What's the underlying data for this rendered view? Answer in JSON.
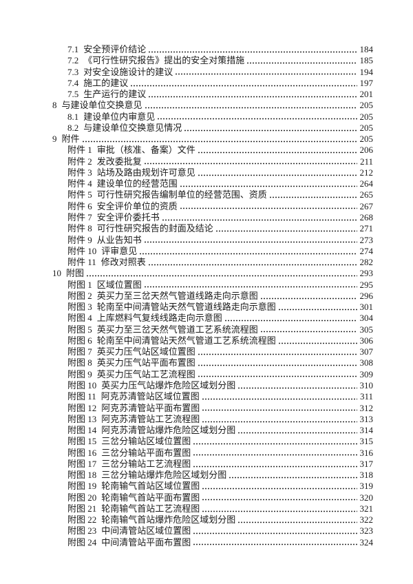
{
  "page": {
    "background_color": "#ffffff",
    "text_color": "#1a1a1a"
  },
  "toc": {
    "entries": [
      {
        "level": 2,
        "label": "7.1",
        "title": "安全预评价结论",
        "page": "184"
      },
      {
        "level": 2,
        "label": "7.2",
        "title": "《可行性研究报告》提出的安全对策措施",
        "page": "185"
      },
      {
        "level": 2,
        "label": "7.3",
        "title": "对安全设施设计的建议",
        "page": "194"
      },
      {
        "level": 2,
        "label": "7.4",
        "title": "施工的建议",
        "page": "197"
      },
      {
        "level": 2,
        "label": "7.5",
        "title": "生产运行的建议",
        "page": "201"
      },
      {
        "level": 1,
        "label": "8",
        "title": "与建设单位交换意见",
        "page": "205"
      },
      {
        "level": 2,
        "label": "8.1",
        "title": "建设单位内审意见",
        "page": "205"
      },
      {
        "level": 2,
        "label": "8.2",
        "title": "与建设单位交换意见情况",
        "page": "205"
      },
      {
        "level": 1,
        "label": "9",
        "title": "附件",
        "page": "205"
      },
      {
        "level": 2,
        "label": "附件 1",
        "title": "审批（核准、备案）文件",
        "page": "206"
      },
      {
        "level": 2,
        "label": "附件 2",
        "title": "发改委批复",
        "page": "211"
      },
      {
        "level": 2,
        "label": "附件 3",
        "title": "站场及路由规划许可意见",
        "page": "212"
      },
      {
        "level": 2,
        "label": "附件 4",
        "title": "建设单位的经营范围",
        "page": "264"
      },
      {
        "level": 2,
        "label": "附件 5",
        "title": "可行性研究报告编制单位的经营范围、资质",
        "page": "265"
      },
      {
        "level": 2,
        "label": "附件 6",
        "title": "安全评价单位的资质",
        "page": "267"
      },
      {
        "level": 2,
        "label": "附件 7",
        "title": "安全评价委托书",
        "page": "268"
      },
      {
        "level": 2,
        "label": "附件 8",
        "title": "可行性研究报告的封面及结论",
        "page": "271"
      },
      {
        "level": 2,
        "label": "附件 9",
        "title": "从业告知书",
        "page": "273"
      },
      {
        "level": 2,
        "label": "附件 10",
        "title": "评审意见",
        "page": "274"
      },
      {
        "level": 2,
        "label": "附件 11",
        "title": "修改对照表",
        "page": "282"
      },
      {
        "level": 1,
        "label": "10",
        "title": "附图",
        "page": "293"
      },
      {
        "level": 2,
        "label": "附图 1",
        "title": "区域位置图",
        "page": "295"
      },
      {
        "level": 2,
        "label": "附图 2",
        "title": "英买力至三岔天然气管道线路走向示意图",
        "page": "296"
      },
      {
        "level": 2,
        "label": "附图 3",
        "title": "轮南至中间清管站天然气管道线路走向示意图",
        "page": "301"
      },
      {
        "level": 2,
        "label": "附图 4",
        "title": "上库燃料气复线线路走向示意图",
        "page": "304"
      },
      {
        "level": 2,
        "label": "附图 5",
        "title": "英买力至三岔天然气管道工艺系统流程图",
        "page": "305"
      },
      {
        "level": 2,
        "label": "附图 6",
        "title": "轮南至中间清管站天然气管道工艺系统流程图",
        "page": "306"
      },
      {
        "level": 2,
        "label": "附图 7",
        "title": "英买力压气站区域位置图",
        "page": "307"
      },
      {
        "level": 2,
        "label": "附图 8",
        "title": "英买力压气站平面布置图",
        "page": "308"
      },
      {
        "level": 2,
        "label": "附图 9",
        "title": "英买力压气站工艺流程图",
        "page": "309"
      },
      {
        "level": 2,
        "label": "附图 10",
        "title": "英买力压气站爆炸危险区域划分图",
        "page": "310"
      },
      {
        "level": 2,
        "label": "附图 11",
        "title": "阿克苏清管站区域位置图",
        "page": "311"
      },
      {
        "level": 2,
        "label": "附图 12",
        "title": "阿克苏清管站平面布置图",
        "page": "312"
      },
      {
        "level": 2,
        "label": "附图 13",
        "title": "阿克苏清管站工艺流程图",
        "page": "313"
      },
      {
        "level": 2,
        "label": "附图 14",
        "title": "阿克苏清管站爆炸危险区域划分图",
        "page": "314"
      },
      {
        "level": 2,
        "label": "附图 15",
        "title": "三岔分输站区域位置图",
        "page": "315"
      },
      {
        "level": 2,
        "label": "附图 16",
        "title": "三岔分输站平面布置图",
        "page": "316"
      },
      {
        "level": 2,
        "label": "附图 17",
        "title": "三岔分输站工艺流程图",
        "page": "317"
      },
      {
        "level": 2,
        "label": "附图 18",
        "title": "三岔分输站爆炸危险区域划分图",
        "page": "318"
      },
      {
        "level": 2,
        "label": "附图 19",
        "title": "轮南输气首站区域位置图",
        "page": "319"
      },
      {
        "level": 2,
        "label": "附图 20",
        "title": "轮南输气首站平面布置图",
        "page": "320"
      },
      {
        "level": 2,
        "label": "附图 21",
        "title": "轮南输气首站工艺流程图",
        "page": "321"
      },
      {
        "level": 2,
        "label": "附图 22",
        "title": "轮南输气首站爆炸危险区域划分图",
        "page": "322"
      },
      {
        "level": 2,
        "label": "附图 23",
        "title": "中间清管站区域位置图",
        "page": "323"
      },
      {
        "level": 2,
        "label": "附图 24",
        "title": "中间清管站平面布置图",
        "page": "324"
      }
    ]
  }
}
